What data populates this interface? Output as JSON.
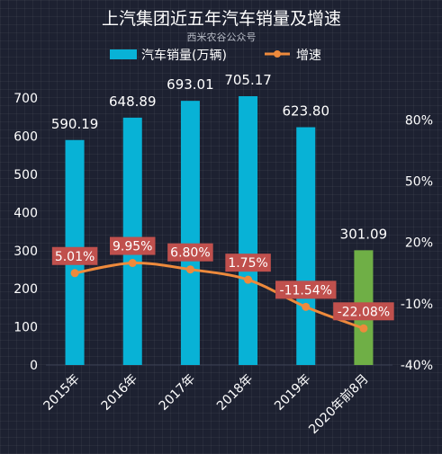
{
  "chart_data": {
    "type": "bar",
    "title": "上汽集团近五年汽车销量及增速",
    "subtitle": "西米农谷公众号",
    "categories": [
      "2015年",
      "2016年",
      "2017年",
      "2018年",
      "2019年",
      "2020年前8月"
    ],
    "series": [
      {
        "name": "汽车销量(万辆)",
        "type": "bar",
        "axis": "left",
        "values": [
          590.19,
          648.89,
          693.01,
          705.17,
          623.8,
          301.09
        ],
        "labels": [
          "590.19",
          "648.89",
          "693.01",
          "705.17",
          "623.80",
          "301.09"
        ],
        "colors": [
          "#08b2d6",
          "#08b2d6",
          "#08b2d6",
          "#08b2d6",
          "#08b2d6",
          "#6faf46"
        ]
      },
      {
        "name": "增速",
        "type": "line",
        "axis": "right",
        "values": [
          5.01,
          9.95,
          6.8,
          1.75,
          -11.54,
          -22.08
        ],
        "labels": [
          "5.01%",
          "9.95%",
          "6.80%",
          "1.75%",
          "-11.54%",
          "-22.08%"
        ],
        "color": "#ee8a3c",
        "label_bg": "#c0504d"
      }
    ],
    "y_left": {
      "ylim": [
        0,
        750
      ],
      "ticks": [
        "0",
        "100",
        "200",
        "300",
        "400",
        "500",
        "600",
        "700"
      ],
      "tick_values": [
        0,
        100,
        200,
        300,
        400,
        500,
        600,
        700
      ]
    },
    "y_right": {
      "ylim": [
        -40,
        100
      ],
      "ticks": [
        "-40%",
        "-10%",
        "20%",
        "50%",
        "80%"
      ],
      "tick_values": [
        -40,
        -10,
        20,
        50,
        80
      ]
    },
    "legend_position": "top",
    "grid": false
  }
}
